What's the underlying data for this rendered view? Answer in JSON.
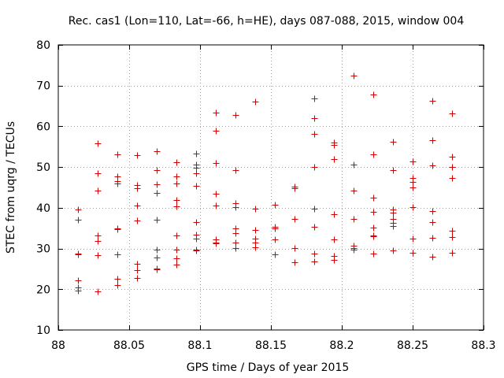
{
  "chart_data": {
    "type": "scatter",
    "title": "Rec. cas1 (Lon=110, Lat=-66, h=HE), days 087-088, 2015, window 004",
    "xlabel": "GPS time / Days of year 2015",
    "ylabel": "STEC from uqrg / TECUs",
    "xlim": [
      88,
      88.3
    ],
    "ylim": [
      10,
      80
    ],
    "xticks": [
      88,
      88.05,
      88.1,
      88.15,
      88.2,
      88.25,
      88.3
    ],
    "xtick_labels": [
      "88",
      "88.05",
      "88.1",
      "88.15",
      "88.2",
      "88.25",
      "88.3"
    ],
    "yticks": [
      10,
      20,
      30,
      40,
      50,
      60,
      70,
      80
    ],
    "ytick_labels": [
      "10",
      "20",
      "30",
      "40",
      "50",
      "60",
      "70",
      "80"
    ],
    "grid": true,
    "marker": "+",
    "color": "#d60000",
    "series": [
      {
        "name": "STEC",
        "points": [
          [
            88.0139,
            39.5
          ],
          [
            88.0139,
            37.1
          ],
          [
            88.0139,
            28.8
          ],
          [
            88.0139,
            28.6
          ],
          [
            88.0139,
            22.2
          ],
          [
            88.0139,
            20.4
          ],
          [
            88.0139,
            19.6
          ],
          [
            88.0278,
            55.8
          ],
          [
            88.0278,
            48.4
          ],
          [
            88.0278,
            44.2
          ],
          [
            88.0278,
            33.2
          ],
          [
            88.0278,
            31.9
          ],
          [
            88.0278,
            28.4
          ],
          [
            88.0278,
            19.5
          ],
          [
            88.0417,
            53.2
          ],
          [
            88.0417,
            47.8
          ],
          [
            88.0417,
            46.6
          ],
          [
            88.0417,
            45.9
          ],
          [
            88.0417,
            35.0
          ],
          [
            88.0417,
            34.7
          ],
          [
            88.0417,
            28.6
          ],
          [
            88.0417,
            22.6
          ],
          [
            88.0417,
            21.0
          ],
          [
            88.0556,
            53.0
          ],
          [
            88.0556,
            45.6
          ],
          [
            88.0556,
            44.8
          ],
          [
            88.0556,
            40.5
          ],
          [
            88.0556,
            36.8
          ],
          [
            88.0556,
            26.2
          ],
          [
            88.0556,
            24.6
          ],
          [
            88.0556,
            22.7
          ],
          [
            88.0694,
            53.8
          ],
          [
            88.0694,
            49.2
          ],
          [
            88.0694,
            45.7
          ],
          [
            88.0694,
            43.6
          ],
          [
            88.0694,
            37.1
          ],
          [
            88.0694,
            29.7
          ],
          [
            88.0694,
            27.8
          ],
          [
            88.0694,
            25.1
          ],
          [
            88.0694,
            24.9
          ],
          [
            88.0833,
            51.1
          ],
          [
            88.0833,
            47.7
          ],
          [
            88.0833,
            46.0
          ],
          [
            88.0833,
            42.0
          ],
          [
            88.0833,
            40.3
          ],
          [
            88.0833,
            33.2
          ],
          [
            88.0833,
            29.7
          ],
          [
            88.0833,
            27.6
          ],
          [
            88.0833,
            26.0
          ],
          [
            88.0972,
            53.3
          ],
          [
            88.0972,
            50.7
          ],
          [
            88.0972,
            49.8
          ],
          [
            88.0972,
            48.5
          ],
          [
            88.0972,
            45.4
          ],
          [
            88.0972,
            36.5
          ],
          [
            88.0972,
            33.4
          ],
          [
            88.0972,
            32.4
          ],
          [
            88.0972,
            29.8
          ],
          [
            88.0972,
            29.5
          ],
          [
            88.1111,
            63.3
          ],
          [
            88.1111,
            58.9
          ],
          [
            88.1111,
            51.0
          ],
          [
            88.1111,
            43.5
          ],
          [
            88.1111,
            40.5
          ],
          [
            88.1111,
            32.3
          ],
          [
            88.1111,
            31.5
          ],
          [
            88.1111,
            31.2
          ],
          [
            88.125,
            62.8
          ],
          [
            88.125,
            49.2
          ],
          [
            88.125,
            41.2
          ],
          [
            88.125,
            40.2
          ],
          [
            88.125,
            35.0
          ],
          [
            88.125,
            33.8
          ],
          [
            88.125,
            31.4
          ],
          [
            88.125,
            30.2
          ],
          [
            88.1389,
            66.1
          ],
          [
            88.1389,
            39.8
          ],
          [
            88.1389,
            34.5
          ],
          [
            88.1389,
            32.4
          ],
          [
            88.1389,
            31.4
          ],
          [
            88.1389,
            30.4
          ],
          [
            88.1528,
            40.7
          ],
          [
            88.1528,
            35.4
          ],
          [
            88.1528,
            35.0
          ],
          [
            88.1528,
            32.3
          ],
          [
            88.1528,
            28.6
          ],
          [
            88.1667,
            45.1
          ],
          [
            88.1667,
            44.9
          ],
          [
            88.1667,
            37.2
          ],
          [
            88.1667,
            30.2
          ],
          [
            88.1667,
            26.7
          ],
          [
            88.1806,
            66.8
          ],
          [
            88.1806,
            62.0
          ],
          [
            88.1806,
            58.1
          ],
          [
            88.1806,
            50.1
          ],
          [
            88.1806,
            39.8
          ],
          [
            88.1806,
            35.3
          ],
          [
            88.1806,
            28.8
          ],
          [
            88.1806,
            26.9
          ],
          [
            88.1944,
            56.0
          ],
          [
            88.1944,
            55.4
          ],
          [
            88.1944,
            52.0
          ],
          [
            88.1944,
            38.4
          ],
          [
            88.1944,
            32.2
          ],
          [
            88.1944,
            28.1
          ],
          [
            88.1944,
            27.2
          ],
          [
            88.2083,
            72.4
          ],
          [
            88.2083,
            50.6
          ],
          [
            88.2083,
            44.2
          ],
          [
            88.2083,
            37.3
          ],
          [
            88.2083,
            30.7
          ],
          [
            88.2083,
            30.2
          ],
          [
            88.2083,
            29.8
          ],
          [
            88.2222,
            67.9
          ],
          [
            88.2222,
            53.1
          ],
          [
            88.2222,
            42.5
          ],
          [
            88.2222,
            39.0
          ],
          [
            88.2222,
            35.1
          ],
          [
            88.2222,
            33.3
          ],
          [
            88.2222,
            33.1
          ],
          [
            88.2222,
            28.7
          ],
          [
            88.2361,
            56.3
          ],
          [
            88.2361,
            49.3
          ],
          [
            88.2361,
            39.5
          ],
          [
            88.2361,
            38.9
          ],
          [
            88.2361,
            37.3
          ],
          [
            88.2361,
            36.3
          ],
          [
            88.2361,
            35.6
          ],
          [
            88.2361,
            29.6
          ],
          [
            88.25,
            51.4
          ],
          [
            88.25,
            47.3
          ],
          [
            88.25,
            46.3
          ],
          [
            88.25,
            45.0
          ],
          [
            88.25,
            40.1
          ],
          [
            88.25,
            32.5
          ],
          [
            88.25,
            28.9
          ],
          [
            88.2639,
            66.3
          ],
          [
            88.2639,
            56.6
          ],
          [
            88.2639,
            50.5
          ],
          [
            88.2639,
            39.2
          ],
          [
            88.2639,
            36.4
          ],
          [
            88.2639,
            32.7
          ],
          [
            88.2639,
            27.9
          ],
          [
            88.2778,
            63.1
          ],
          [
            88.2778,
            52.5
          ],
          [
            88.2778,
            50.0
          ],
          [
            88.2778,
            47.3
          ],
          [
            88.2778,
            34.4
          ],
          [
            88.2778,
            32.8
          ],
          [
            88.2778,
            29.0
          ]
        ]
      }
    ]
  }
}
